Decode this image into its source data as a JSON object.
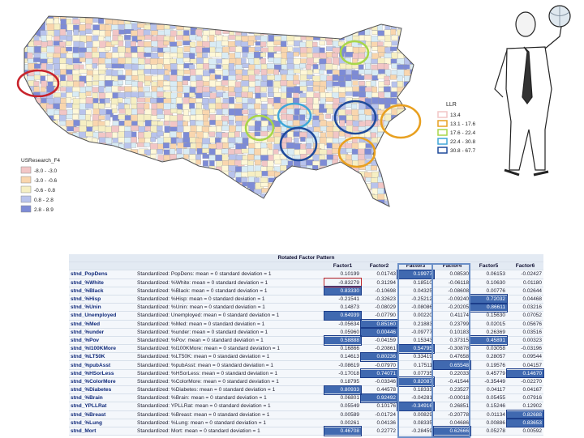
{
  "map": {
    "legend_title": "USResearch_F4",
    "legend_items": [
      "-8.0 - -3.0",
      "-3.0 - -0.6",
      "-0.6 - 0.8",
      "0.8 - 2.8",
      "2.8 - 8.9"
    ],
    "llr_title": "LLR",
    "llr_items": [
      "13.4",
      "13.1 - 17.6",
      "17.6 - 22.4",
      "22.4 - 30.8",
      "30.8 - 67.7"
    ]
  },
  "table": {
    "title": "Rotated Factor Pattern",
    "columns": [
      "Factor1",
      "Factor2",
      "Factor3",
      "Factor4",
      "Factor5",
      "Factor6"
    ],
    "rows": [
      [
        "stnd_PopDens",
        "Standardized: PopDens: mean = 0 standard deviation = 1",
        "0.10199",
        "0.01743",
        "0.19977",
        "0.08530",
        "0.06153",
        "-0.02427"
      ],
      [
        "stnd_%White",
        "Standardized: %White: mean = 0 standard deviation = 1",
        "-0.83279",
        "0.31294",
        "0.18510",
        "-0.06118",
        "0.10630",
        "0.01180"
      ],
      [
        "stnd_%Black",
        "Standardized: %Black: mean = 0 standard deviation = 1",
        "0.83330",
        "-0.10698",
        "0.04325",
        "-0.08608",
        "0.00776",
        "0.02644"
      ],
      [
        "stnd_%Hisp",
        "Standardized: %Hisp: mean = 0 standard deviation = 1",
        "-0.21541",
        "-0.32623",
        "-0.25212",
        "-0.09240",
        "0.72032",
        "0.04468"
      ],
      [
        "stnd_%Unin",
        "Standardized: %Unin: mean = 0 standard deviation = 1",
        "0.14873",
        "-0.08029",
        "-0.08086",
        "-0.20205",
        "0.86611",
        "0.03216"
      ],
      [
        "stnd_Unemployed",
        "Standardized: Unemployed: mean = 0 standard deviation = 1",
        "0.64939",
        "-0.07790",
        "0.00220",
        "0.41174",
        "0.15630",
        "0.07052"
      ],
      [
        "stnd_%Med",
        "Standardized: %Med: mean = 0 standard deviation = 1",
        "-0.05634",
        "0.85160",
        "0.21883",
        "0.23799",
        "0.02015",
        "0.05676"
      ],
      [
        "stnd_%under",
        "Standardized: %under: mean = 0 standard deviation = 1",
        "0.05960",
        "0.00446",
        "-0.09777",
        "0.10183",
        "0.26369",
        "0.03516"
      ],
      [
        "stnd_%Pov",
        "Standardized: %Pov: mean = 0 standard deviation = 1",
        "0.58888",
        "-0.04159",
        "0.15343",
        "0.37315",
        "0.45891",
        "0.00323"
      ],
      [
        "stnd_%l100KMore",
        "Standardized: %l100KMore: mean = 0 standard deviation = 1",
        "0.16866",
        "-0.20861",
        "0.54795",
        "-0.30878",
        "0.03058",
        "-0.03196"
      ],
      [
        "stnd_%LT50K",
        "Standardized: %LT50K: mean = 0 standard deviation = 1",
        "0.14613",
        "0.80236",
        "0.33419",
        "0.47658",
        "0.28057",
        "0.09544"
      ],
      [
        "stnd_%pubAsst",
        "Standardized: %pubAsst: mean = 0 standard deviation = 1",
        "-0.08619",
        "-0.07970",
        "0.17511",
        "0.65548",
        "0.19576",
        "0.04157"
      ],
      [
        "stnd_%HSorLess",
        "Standardized: %HSorLess: mean = 0 standard deviation = 1",
        "-0.17018",
        "0.74071",
        "0.07735",
        "0.22033",
        "0.45779",
        "0.14670"
      ],
      [
        "stnd_%ColorMore",
        "Standardized: %ColorMore: mean = 0 standard deviation = 1",
        "0.18795",
        "-0.03346",
        "0.82087",
        "-0.41544",
        "-0.35449",
        "-0.02270"
      ],
      [
        "stnd_%Diabetes",
        "Standardized: %Diabetes: mean = 0 standard deviation = 1",
        "0.80933",
        "0.44578",
        "0.18333",
        "0.23527",
        "0.04117",
        "0.04167"
      ],
      [
        "stnd_%Brain",
        "Standardized: %Brain: mean = 0 standard deviation = 1",
        "0.06801",
        "0.92492",
        "-0.04281",
        "-0.00018",
        "0.05455",
        "0.07916"
      ],
      [
        "stnd_YPLLRat",
        "Standardized: YPLLRat: mean = 0 standard deviation = 1",
        "0.05549",
        "0.10176",
        "-0.34916",
        "0.26851",
        "0.15246",
        "0.12902"
      ],
      [
        "stnd_%Breast",
        "Standardized: %Breast: mean = 0 standard deviation = 1",
        "0.00589",
        "-0.01724",
        "0.00829",
        "-0.20778",
        "0.01134",
        "0.82688"
      ],
      [
        "stnd_%Lung",
        "Standardized: %Lung: mean = 0 standard deviation = 1",
        "0.00261",
        "0.04136",
        "0.08335",
        "0.04686",
        "0.00886",
        "0.83653"
      ],
      [
        "stnd_Mort",
        "Standardized: Mort: mean = 0 standard deviation = 1",
        "0.46708",
        "0.22772",
        "-0.28459",
        "0.62666",
        "0.05278",
        "0.00592"
      ]
    ]
  }
}
